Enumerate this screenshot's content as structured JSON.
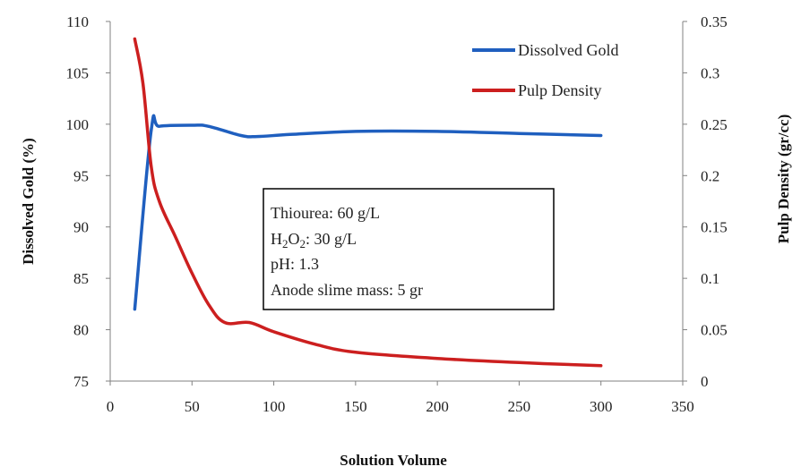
{
  "chart_data": {
    "type": "line",
    "title": "",
    "xlabel": "Solution Volume",
    "ylabel_left": "Dissolved Gold (%)",
    "ylabel_right": "Pulp Density (gr/cc)",
    "xlim": [
      0,
      350
    ],
    "ylim_left": [
      75,
      110
    ],
    "ylim_right": [
      0,
      0.35
    ],
    "x_ticks": [
      "0",
      "50",
      "100",
      "150",
      "200",
      "250",
      "300",
      "350"
    ],
    "y_left_ticks": [
      "75",
      "80",
      "85",
      "90",
      "95",
      "100",
      "105",
      "110"
    ],
    "y_right_ticks": [
      "0",
      "0.05",
      "0.1",
      "0.15",
      "0.2",
      "0.25",
      "0.3",
      "0.35"
    ],
    "grid": false,
    "legend_position": "top-right",
    "series": [
      {
        "name": "Dissolved Gold",
        "axis": "left",
        "color": "#1f5fbf",
        "points": [
          [
            15,
            82
          ],
          [
            25,
            99.3
          ],
          [
            30,
            99.8
          ],
          [
            50,
            99.9
          ],
          [
            60,
            99.8
          ],
          [
            80,
            98.9
          ],
          [
            90,
            98.8
          ],
          [
            110,
            99.0
          ],
          [
            150,
            99.3
          ],
          [
            200,
            99.3
          ],
          [
            250,
            99.1
          ],
          [
            300,
            98.9
          ]
        ]
      },
      {
        "name": "Pulp Density",
        "axis": "right",
        "color": "#cc1f1f",
        "points": [
          [
            15,
            0.333
          ],
          [
            20,
            0.29
          ],
          [
            25,
            0.21
          ],
          [
            30,
            0.175
          ],
          [
            40,
            0.14
          ],
          [
            50,
            0.105
          ],
          [
            60,
            0.075
          ],
          [
            70,
            0.057
          ],
          [
            85,
            0.057
          ],
          [
            100,
            0.048
          ],
          [
            125,
            0.036
          ],
          [
            150,
            0.028
          ],
          [
            200,
            0.022
          ],
          [
            250,
            0.018
          ],
          [
            300,
            0.015
          ]
        ]
      }
    ],
    "annotation": {
      "line1": "Thiourea: 60 g/L",
      "line2_prefix": "H",
      "line2_sub1": "2",
      "line2_mid": "O",
      "line2_sub2": "2",
      "line2_suffix": ": 30 g/L",
      "line3": "pH: 1.3",
      "line4": "Anode slime mass: 5 gr"
    }
  }
}
